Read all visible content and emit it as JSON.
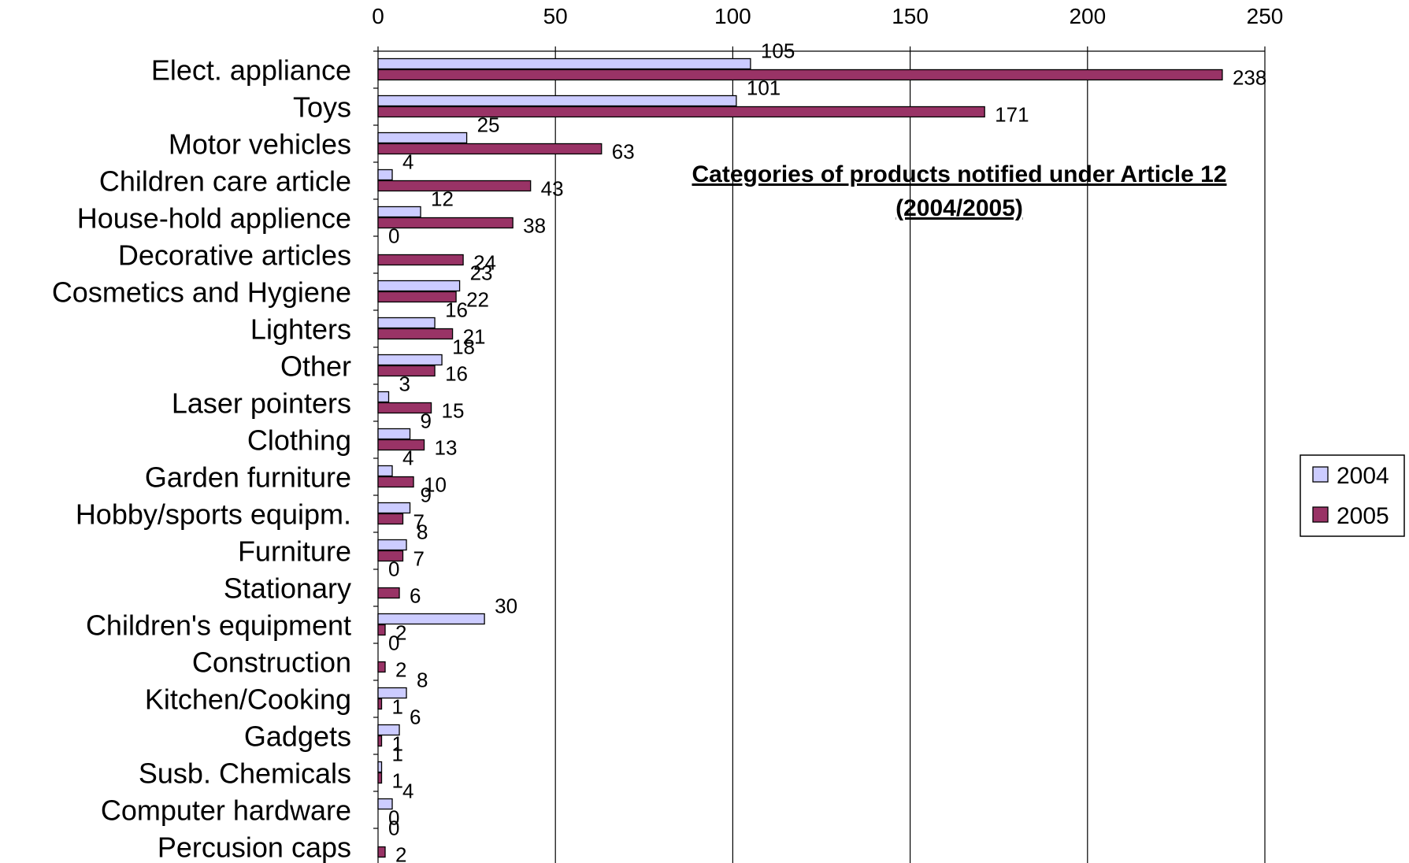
{
  "chart_data": {
    "type": "bar",
    "orientation": "horizontal",
    "title": "Categories of products notified under Article 12",
    "subtitle": "(2004/2005)",
    "categories": [
      "Elect. appliance",
      "Toys",
      "Motor vehicles",
      "Children care article",
      "House-hold applience",
      "Decorative articles",
      "Cosmetics and Hygiene",
      "Lighters",
      "Other",
      "Laser pointers",
      "Clothing",
      "Garden furniture",
      "Hobby/sports equipm.",
      "Furniture",
      "Stationary",
      "Children's equipment",
      "Construction",
      "Kitchen/Cooking",
      "Gadgets",
      "Susb. Chemicals",
      "Computer hardware",
      "Percusion caps"
    ],
    "series": [
      {
        "name": "2004",
        "color": "#ccccff",
        "values": [
          105,
          101,
          25,
          4,
          12,
          0,
          23,
          16,
          18,
          3,
          9,
          4,
          9,
          8,
          0,
          30,
          0,
          8,
          6,
          1,
          4,
          0
        ]
      },
      {
        "name": "2005",
        "color": "#993366",
        "values": [
          238,
          171,
          63,
          43,
          38,
          24,
          22,
          21,
          16,
          15,
          13,
          10,
          7,
          7,
          6,
          2,
          2,
          1,
          1,
          1,
          0,
          2
        ]
      }
    ],
    "xlim": [
      0,
      250
    ],
    "xticks": [
      0,
      50,
      100,
      150,
      200,
      250
    ],
    "x_axis_position": "top",
    "grid": "vertical",
    "legend_position": "right"
  }
}
